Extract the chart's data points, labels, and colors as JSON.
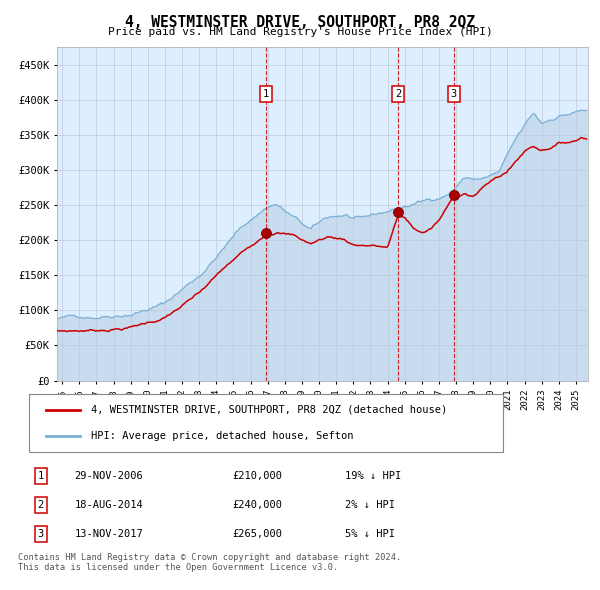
{
  "title": "4, WESTMINSTER DRIVE, SOUTHPORT, PR8 2QZ",
  "subtitle": "Price paid vs. HM Land Registry's House Price Index (HPI)",
  "legend_line1": "4, WESTMINSTER DRIVE, SOUTHPORT, PR8 2QZ (detached house)",
  "legend_line2": "HPI: Average price, detached house, Sefton",
  "sale_color": "#cc0000",
  "hpi_color": "#7bafd4",
  "hpi_fill_color": "#c8dcf0",
  "bg_color": "#ddeeff",
  "grid_color": "#c0c8d8",
  "vline_color": "#cc0000",
  "sales": [
    {
      "label": "1",
      "date_x": 2006.91,
      "price": 210000,
      "pct": "19%",
      "date_str": "29-NOV-2006"
    },
    {
      "label": "2",
      "date_x": 2014.63,
      "price": 240000,
      "pct": "2%",
      "date_str": "18-AUG-2014"
    },
    {
      "label": "3",
      "date_x": 2017.87,
      "price": 265000,
      "pct": "5%",
      "date_str": "13-NOV-2017"
    }
  ],
  "ylim": [
    0,
    475000
  ],
  "xlim_start": 1994.7,
  "xlim_end": 2025.7,
  "footnote_line1": "Contains HM Land Registry data © Crown copyright and database right 2024.",
  "footnote_line2": "This data is licensed under the Open Government Licence v3.0.",
  "yticks": [
    0,
    50000,
    100000,
    150000,
    200000,
    250000,
    300000,
    350000,
    400000,
    450000
  ],
  "ytick_labels": [
    "£0",
    "£50K",
    "£100K",
    "£150K",
    "£200K",
    "£250K",
    "£300K",
    "£350K",
    "£400K",
    "£450K"
  ],
  "xticks": [
    1995,
    1996,
    1997,
    1998,
    1999,
    2000,
    2001,
    2002,
    2003,
    2004,
    2005,
    2006,
    2007,
    2008,
    2009,
    2010,
    2011,
    2012,
    2013,
    2014,
    2015,
    2016,
    2017,
    2018,
    2019,
    2020,
    2021,
    2022,
    2023,
    2024,
    2025
  ],
  "hpi_anchors_t": [
    1995.0,
    1997.0,
    1999.0,
    2001.0,
    2003.0,
    2004.5,
    2005.5,
    2007.0,
    2007.5,
    2008.5,
    2009.5,
    2010.5,
    2011.5,
    2012.5,
    2013.5,
    2014.5,
    2015.5,
    2016.5,
    2017.5,
    2018.5,
    2019.5,
    2020.5,
    2021.5,
    2022.5,
    2023.0,
    2024.0,
    2025.3
  ],
  "hpi_anchors_v": [
    88000,
    93000,
    103000,
    118000,
    158000,
    200000,
    228000,
    258000,
    262000,
    242000,
    222000,
    238000,
    242000,
    232000,
    238000,
    245000,
    252000,
    258000,
    268000,
    292000,
    290000,
    298000,
    342000,
    376000,
    362000,
    375000,
    382000
  ],
  "sale_anchors_t": [
    1995.0,
    1997.0,
    1999.0,
    2001.0,
    2003.0,
    2004.5,
    2006.0,
    2006.91,
    2007.5,
    2008.5,
    2009.5,
    2010.5,
    2011.5,
    2012.0,
    2013.0,
    2014.0,
    2014.63,
    2015.0,
    2015.5,
    2016.0,
    2016.5,
    2017.0,
    2017.87,
    2018.5,
    2019.0,
    2020.0,
    2021.0,
    2022.0,
    2022.5,
    2023.0,
    2023.5,
    2024.0,
    2025.0,
    2025.3
  ],
  "sale_anchors_v": [
    70000,
    72000,
    78000,
    92000,
    125000,
    160000,
    190000,
    210000,
    215000,
    210000,
    198000,
    208000,
    205000,
    198000,
    198000,
    195000,
    240000,
    236000,
    222000,
    215000,
    220000,
    232000,
    265000,
    272000,
    268000,
    288000,
    303000,
    332000,
    340000,
    335000,
    340000,
    345000,
    350000,
    355000
  ]
}
